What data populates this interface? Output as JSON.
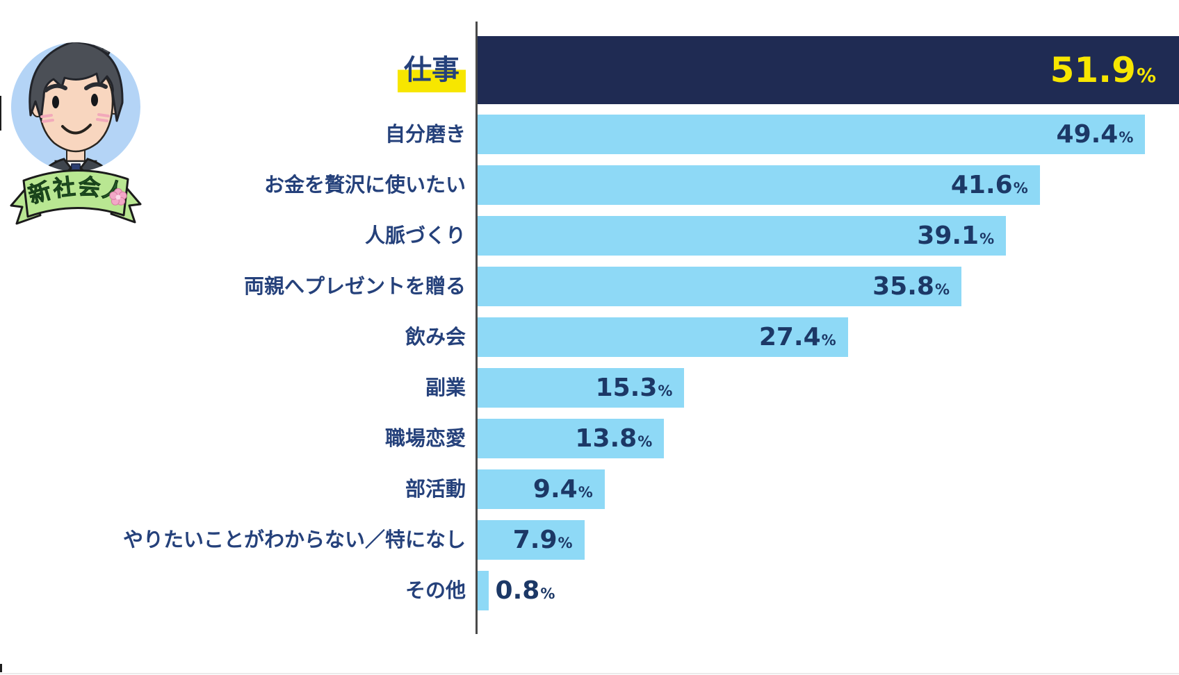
{
  "badge": {
    "label": "新社会人",
    "flower_icon": "sakura-flower-icon"
  },
  "chart_data": {
    "type": "bar",
    "orientation": "horizontal",
    "title": "",
    "unit": "%",
    "categories": [
      "仕事",
      "自分磨き",
      "お金を贅沢に使いたい",
      "人脈づくり",
      "両親へプレゼントを贈る",
      "飲み会",
      "副業",
      "職場恋愛",
      "部活動",
      "やりたいことがわからない／特になし",
      "その他"
    ],
    "values": [
      51.9,
      49.4,
      41.6,
      39.1,
      35.8,
      27.4,
      15.3,
      13.8,
      9.4,
      7.9,
      0.8
    ],
    "value_labels": [
      "51.9",
      "49.4",
      "41.6",
      "39.1",
      "35.8",
      "27.4",
      "15.3",
      "13.8",
      "9.4",
      "7.9",
      "0.8"
    ],
    "xlim": [
      0,
      51.9
    ],
    "grid": false,
    "legend": false,
    "highlight_index": 0,
    "value_outside_indices": [
      10
    ],
    "value_label_position": "inside-end",
    "colors": {
      "bar": "#8ed9f6",
      "highlight_bar": "#1f2b53",
      "value_text": "#1c3866",
      "highlight_value_text": "#f7e600",
      "label_text": "#25417b",
      "marker": "#f7e600",
      "axis": "#4a4a4a"
    }
  }
}
